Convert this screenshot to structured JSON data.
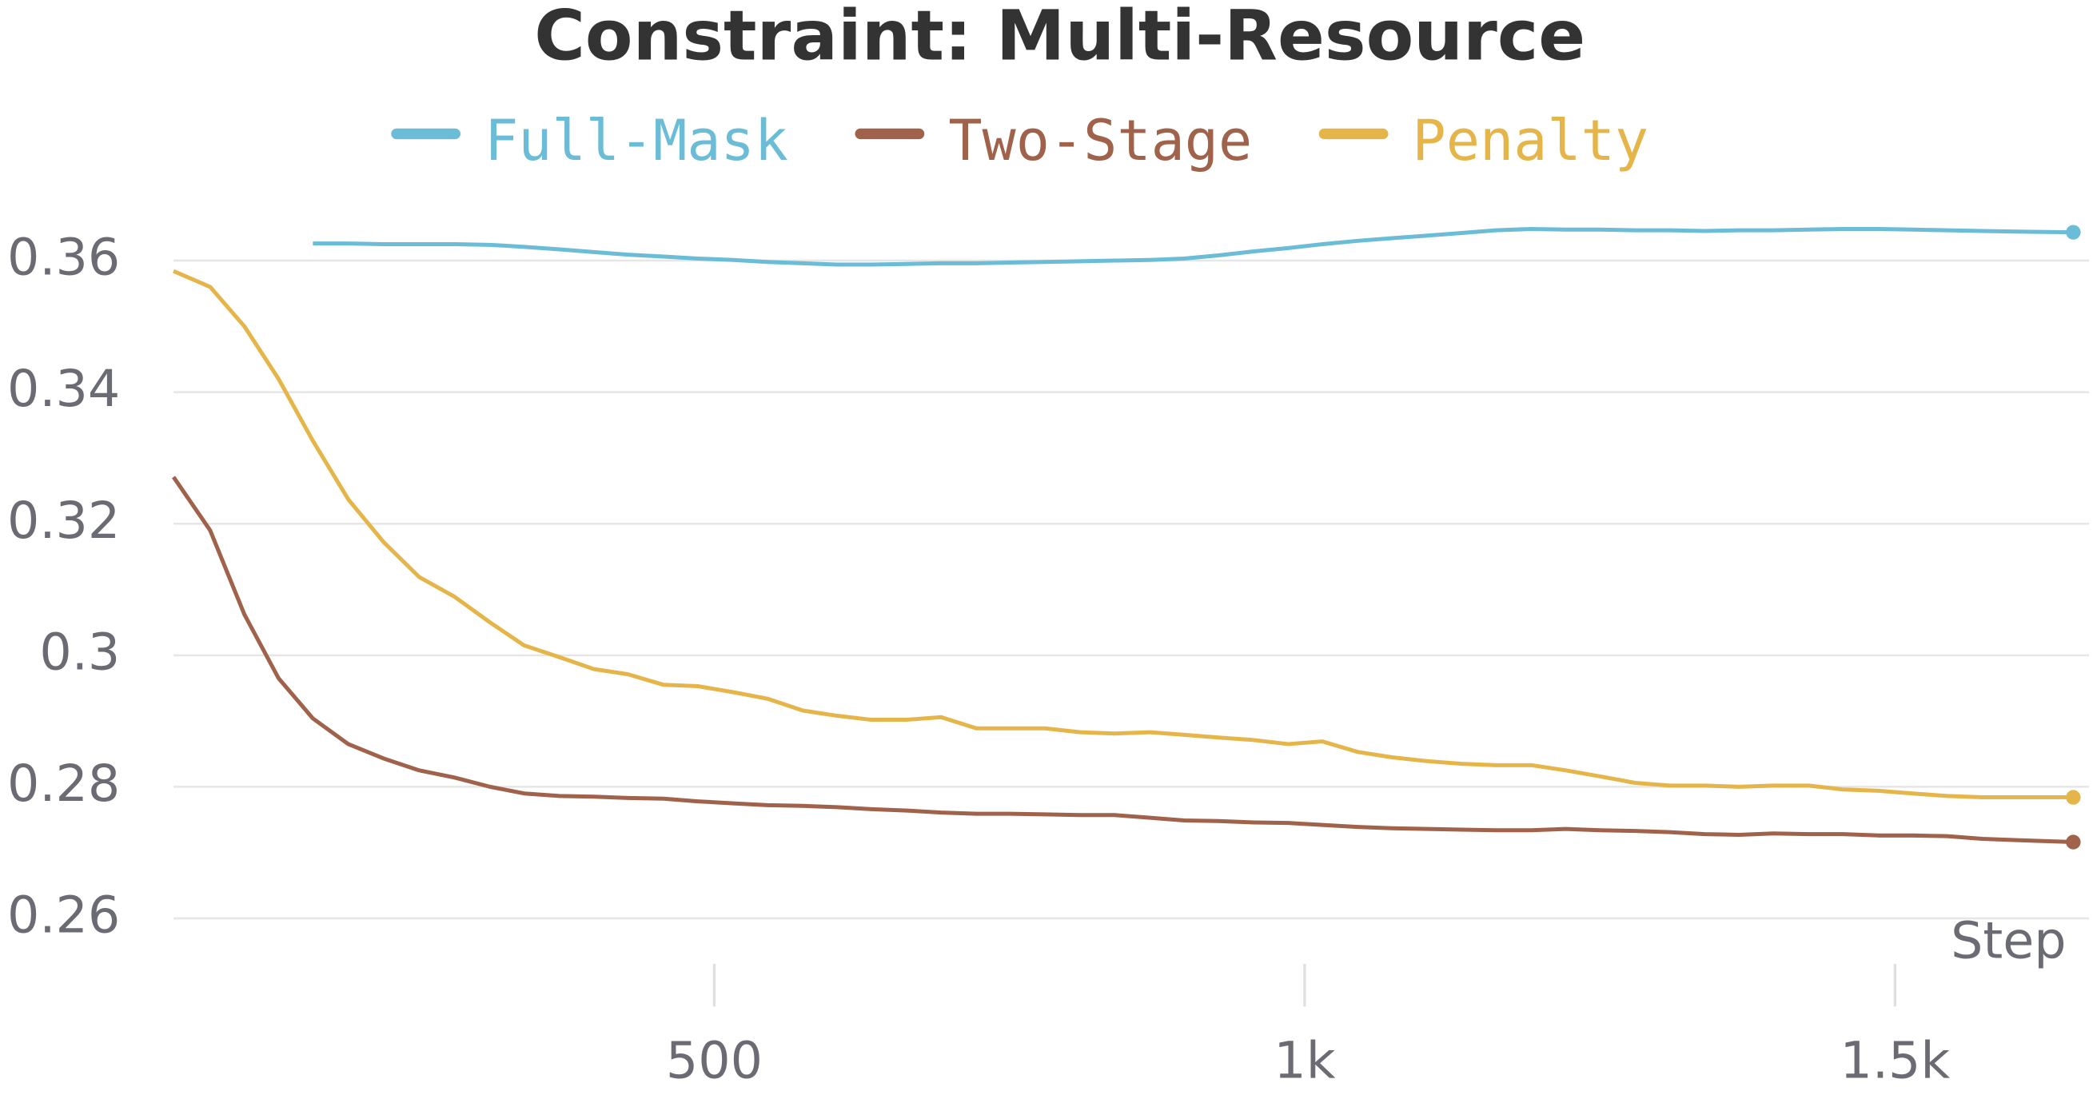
{
  "chart_data": {
    "type": "line",
    "title": "Constraint: Multi-Resource",
    "xlabel": "Step",
    "x": [
      42,
      73,
      102,
      131,
      160,
      190,
      220,
      250,
      280,
      310,
      339,
      369,
      398,
      427,
      457,
      486,
      516,
      545,
      575,
      604,
      633,
      663,
      692,
      722,
      751,
      780,
      810,
      839,
      869,
      898,
      927,
      957,
      986,
      1015,
      1045,
      1074,
      1104,
      1133,
      1162,
      1192,
      1221,
      1250,
      1280,
      1309,
      1339,
      1368,
      1397,
      1427,
      1456,
      1486,
      1515,
      1544,
      1574,
      1603,
      1651
    ],
    "series": [
      {
        "name": "Full-Mask",
        "color": "#6bbcd6",
        "values": [
          null,
          null,
          null,
          null,
          0.3626,
          0.3626,
          0.3625,
          0.3625,
          0.3625,
          0.3624,
          0.3621,
          0.3617,
          0.3613,
          0.3609,
          0.3606,
          0.3603,
          0.3601,
          0.3598,
          0.3596,
          0.3594,
          0.3594,
          0.3595,
          0.3596,
          0.3596,
          0.3597,
          0.3598,
          0.3599,
          0.36,
          0.3601,
          0.3603,
          0.3608,
          0.3614,
          0.3619,
          0.3625,
          0.363,
          0.3634,
          0.3638,
          0.3642,
          0.3646,
          0.3648,
          0.3647,
          0.3647,
          0.3646,
          0.3646,
          0.3645,
          0.3646,
          0.3646,
          0.3647,
          0.3648,
          0.3648,
          0.3647,
          0.3646,
          0.3645,
          0.3644,
          0.3643
        ]
      },
      {
        "name": "Two-Stage",
        "color": "#a0624a",
        "values": [
          0.3271,
          0.319,
          0.3062,
          0.2965,
          0.2904,
          0.2865,
          0.2843,
          0.2825,
          0.2814,
          0.28,
          0.279,
          0.2786,
          0.2785,
          0.2783,
          0.2782,
          0.2778,
          0.2775,
          0.2772,
          0.2771,
          0.2769,
          0.2766,
          0.2764,
          0.2761,
          0.2759,
          0.2759,
          0.2758,
          0.2757,
          0.2757,
          0.2753,
          0.2749,
          0.2748,
          0.2746,
          0.2745,
          0.2742,
          0.2739,
          0.2737,
          0.2736,
          0.2735,
          0.2734,
          0.2734,
          0.2736,
          0.2734,
          0.2733,
          0.2731,
          0.2728,
          0.2727,
          0.2729,
          0.2728,
          0.2728,
          0.2726,
          0.2726,
          0.2725,
          0.2721,
          0.2719,
          0.2716
        ]
      },
      {
        "name": "Penalty",
        "color": "#e6b54a",
        "values": [
          0.3584,
          0.356,
          0.35,
          0.342,
          0.3326,
          0.3237,
          0.3172,
          0.3119,
          0.3089,
          0.305,
          0.3015,
          0.2997,
          0.2979,
          0.2971,
          0.2955,
          0.2953,
          0.2944,
          0.2934,
          0.2916,
          0.2908,
          0.2902,
          0.2902,
          0.2906,
          0.2889,
          0.2889,
          0.2889,
          0.2883,
          0.2881,
          0.2883,
          0.2879,
          0.2875,
          0.2871,
          0.2865,
          0.2869,
          0.2853,
          0.2845,
          0.2839,
          0.2835,
          0.2833,
          0.2833,
          0.2825,
          0.2816,
          0.2806,
          0.2802,
          0.2802,
          0.28,
          0.2802,
          0.2802,
          0.2796,
          0.2794,
          0.279,
          0.2786,
          0.2784,
          0.2784,
          0.2784
        ]
      }
    ],
    "xlim": [
      42,
      1653
    ],
    "ylim": [
      0.247,
      0.367
    ],
    "xticks": [
      500,
      {
        "value": 1000,
        "label": "1k"
      },
      {
        "value": 1500,
        "label": "1.5k"
      }
    ],
    "yticks": [
      0.26,
      0.28,
      0.3,
      0.32,
      0.34,
      0.36
    ],
    "grid": true
  }
}
